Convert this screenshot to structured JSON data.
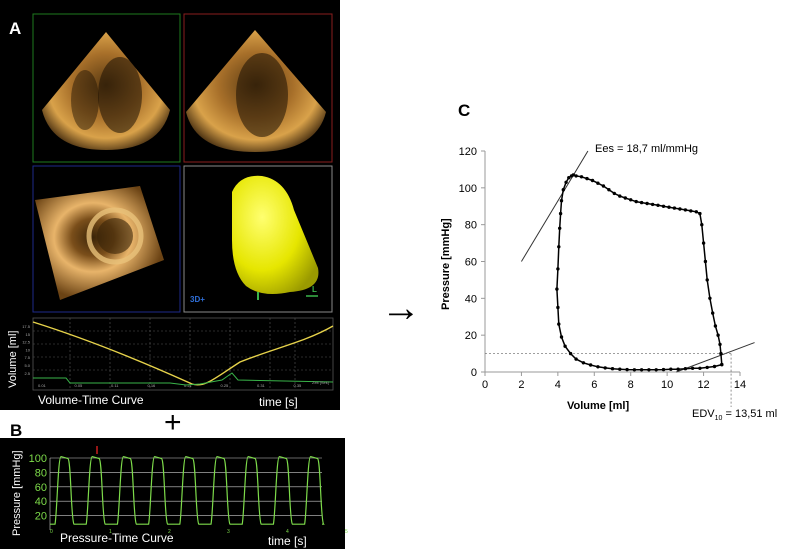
{
  "labels": {
    "a": "A",
    "b": "B",
    "c": "C",
    "plus": "+",
    "arrow": "→"
  },
  "panel_a": {
    "badge_3d": "3D+",
    "axis_letter": "L",
    "volume_chart": {
      "ylabel": "Volume  [ml]",
      "caption": "Volume-Time Curve",
      "xlabel": "time [s]",
      "y_ticks": [
        "17.5",
        "15",
        "12.5",
        "10",
        "7.5",
        "5.0",
        "2.5"
      ],
      "x_ticks": [
        "0.01",
        "0.05",
        "0.11",
        "0.16",
        "0.21",
        "0.25",
        "0.31",
        "0.35"
      ],
      "corner_text": "Zeit [Sek]",
      "colors": {
        "volume": "#e6d24a",
        "ecg": "#3ab54a"
      }
    }
  },
  "panel_b": {
    "ylabel": "Pressure [mmHg]",
    "caption": "Pressure-Time Curve",
    "xlabel": "time [s]",
    "y_ticks": [
      "100",
      "80",
      "60",
      "40",
      "20"
    ],
    "x_ticks": [
      "0",
      "1",
      "2",
      "3",
      "4",
      "5"
    ],
    "color": "#7ddb4a"
  },
  "chart_data": {
    "type": "line",
    "title": "",
    "xlabel": "Volume [ml]",
    "ylabel": "Pressure [mmHg]",
    "xlim": [
      0,
      14
    ],
    "ylim": [
      0,
      120
    ],
    "x_ticks": [
      "0",
      "2",
      "4",
      "6",
      "8",
      "10",
      "12",
      "14"
    ],
    "y_ticks": [
      "0",
      "20",
      "40",
      "60",
      "80",
      "100",
      "120"
    ],
    "grid": false,
    "series": [
      {
        "x": [
          13.0,
          12.6,
          12.2,
          11.8,
          11.4,
          11.0,
          10.6,
          10.2,
          9.8,
          9.4,
          9.0,
          8.6,
          8.2,
          7.8,
          7.4,
          7.0,
          6.6,
          6.2,
          5.8,
          5.4,
          5.0,
          4.7,
          4.4,
          4.2,
          4.05,
          4.0,
          3.95,
          4.0,
          4.05,
          4.1,
          4.15,
          4.2,
          4.3,
          4.45,
          4.6,
          4.75,
          4.85,
          5.0,
          5.3,
          5.6,
          5.9,
          6.2,
          6.5,
          6.8,
          7.1,
          7.4,
          7.7,
          8.0,
          8.3,
          8.6,
          8.9,
          9.2,
          9.5,
          9.8,
          10.1,
          10.4,
          10.7,
          11.0,
          11.3,
          11.6,
          11.8,
          11.9,
          12.0,
          12.1,
          12.2,
          12.35,
          12.5,
          12.65,
          12.8,
          12.9,
          12.95,
          13.0
        ],
        "y": [
          4,
          3,
          2.5,
          2,
          2,
          1.8,
          1.5,
          1.5,
          1.3,
          1.2,
          1.2,
          1.2,
          1.2,
          1.3,
          1.5,
          1.8,
          2.2,
          2.8,
          3.8,
          5,
          7,
          10,
          14,
          19,
          26,
          35,
          45,
          56,
          68,
          78,
          86,
          93,
          99,
          103,
          105.5,
          106.5,
          107,
          106.5,
          106,
          105,
          104,
          102.5,
          101,
          99,
          97,
          95.5,
          94.5,
          93.5,
          92.5,
          92,
          91.5,
          91,
          90.5,
          90,
          89.5,
          89,
          88.5,
          88,
          87.5,
          87,
          86,
          80,
          70,
          60,
          50,
          40,
          32,
          25,
          20,
          15,
          10,
          4
        ]
      }
    ],
    "annotations": {
      "ees_label": "Ees = 18,7 ml/mmHg",
      "edv_prefix": "EDV",
      "edv_sub": "10",
      "edv_suffix": " = 13,51 ml",
      "ees_line": {
        "x1": 2.0,
        "y1": 60.0,
        "x2": 5.65,
        "y2": 120.0
      },
      "edpvr_line": {
        "x1": 10.5,
        "y1": 0.0,
        "x2": 14.8,
        "y2": 16.0
      },
      "ref_pressure": 10,
      "edv_volume": 13.51
    }
  }
}
